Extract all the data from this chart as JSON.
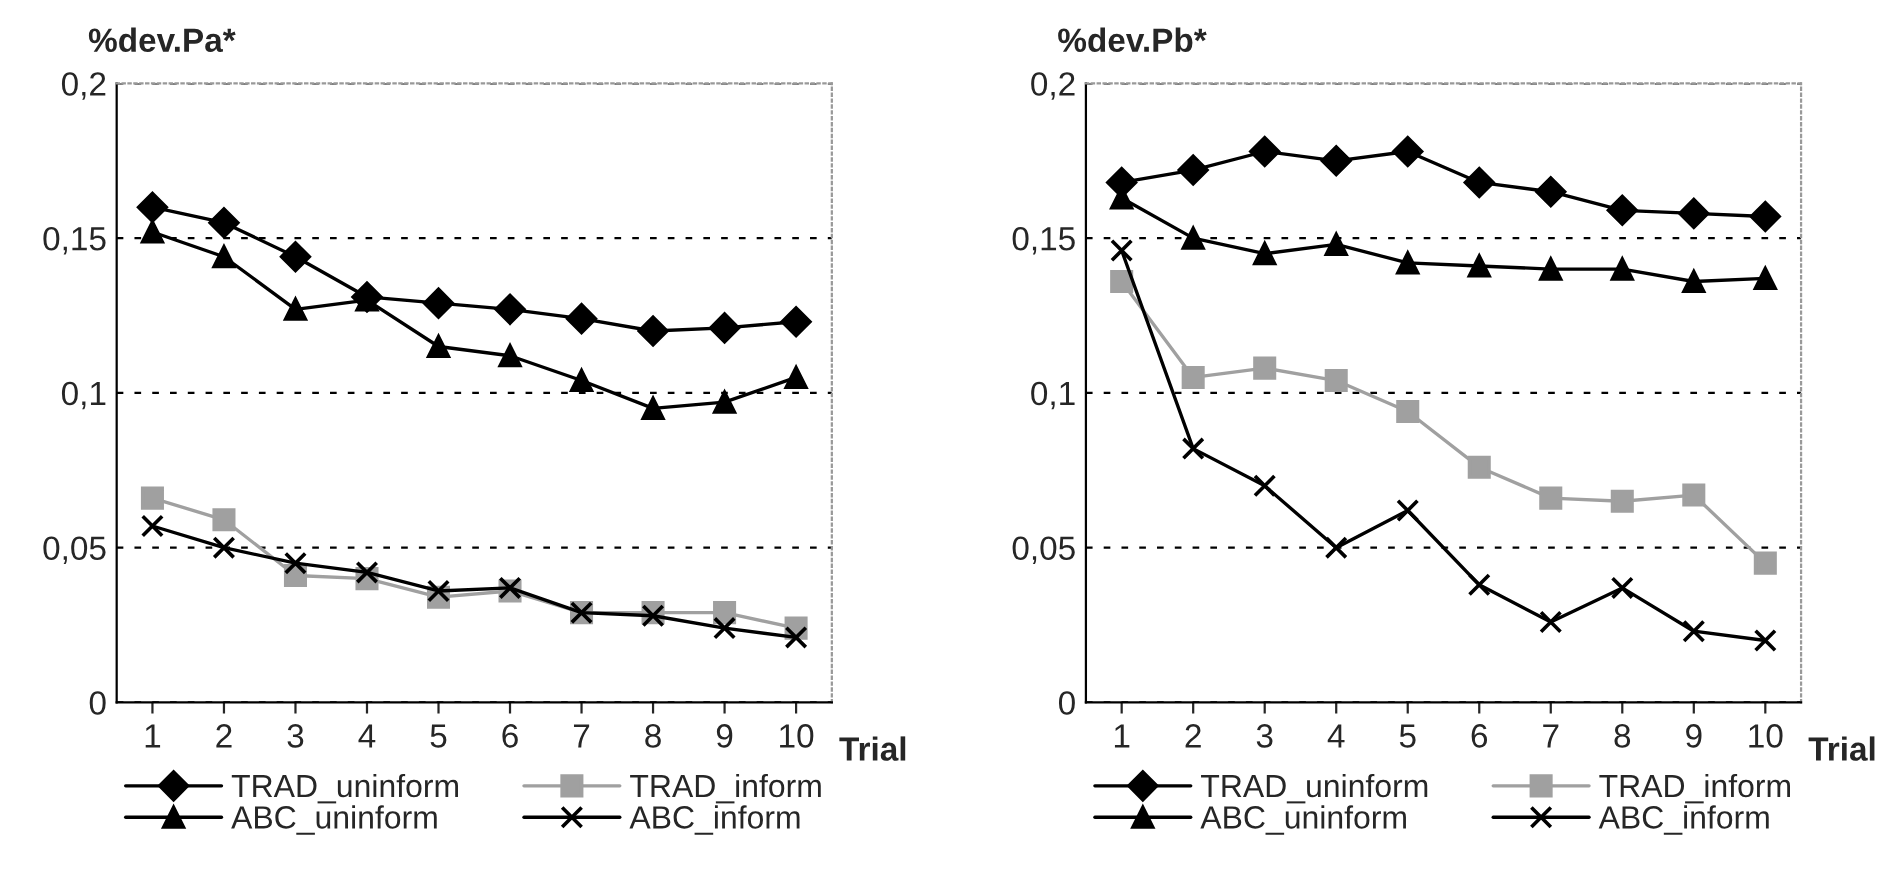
{
  "chart_data": [
    {
      "type": "line",
      "ylabel": "%dev.Pa*",
      "xlabel": "Trial",
      "categories": [
        "1",
        "2",
        "3",
        "4",
        "5",
        "6",
        "7",
        "8",
        "9",
        "10"
      ],
      "ylim": [
        0,
        0.2
      ],
      "yticks": [
        {
          "value": 0,
          "label": "0"
        },
        {
          "value": 0.05,
          "label": "0,05"
        },
        {
          "value": 0.1,
          "label": "0,1"
        },
        {
          "value": 0.15,
          "label": "0,15"
        },
        {
          "value": 0.2,
          "label": "0,2"
        }
      ],
      "grid": "y",
      "legend": "bottom",
      "series": [
        {
          "name": "TRAD_uninform",
          "color": "#000000",
          "marker": "diamond",
          "values": [
            0.16,
            0.155,
            0.144,
            0.131,
            0.129,
            0.127,
            0.124,
            0.12,
            0.121,
            0.123
          ]
        },
        {
          "name": "TRAD_inform",
          "color": "#a0a0a0",
          "marker": "square",
          "values": [
            0.066,
            0.059,
            0.041,
            0.04,
            0.034,
            0.036,
            0.029,
            0.029,
            0.029,
            0.024
          ]
        },
        {
          "name": "ABC_uninform",
          "color": "#000000",
          "marker": "triangle",
          "values": [
            0.152,
            0.144,
            0.127,
            0.13,
            0.115,
            0.112,
            0.104,
            0.095,
            0.097,
            0.105
          ]
        },
        {
          "name": "ABC_inform",
          "color": "#000000",
          "marker": "cross",
          "values": [
            0.057,
            0.05,
            0.045,
            0.042,
            0.036,
            0.037,
            0.029,
            0.028,
            0.024,
            0.021
          ]
        }
      ]
    },
    {
      "type": "line",
      "ylabel": "%dev.Pb*",
      "xlabel": "Trial",
      "categories": [
        "1",
        "2",
        "3",
        "4",
        "5",
        "6",
        "7",
        "8",
        "9",
        "10"
      ],
      "ylim": [
        0,
        0.2
      ],
      "yticks": [
        {
          "value": 0,
          "label": "0"
        },
        {
          "value": 0.05,
          "label": "0,05"
        },
        {
          "value": 0.1,
          "label": "0,1"
        },
        {
          "value": 0.15,
          "label": "0,15"
        },
        {
          "value": 0.2,
          "label": "0,2"
        }
      ],
      "grid": "y",
      "legend": "bottom",
      "series": [
        {
          "name": "TRAD_uninform",
          "color": "#000000",
          "marker": "diamond",
          "values": [
            0.168,
            0.172,
            0.178,
            0.175,
            0.178,
            0.168,
            0.165,
            0.159,
            0.158,
            0.157
          ]
        },
        {
          "name": "TRAD_inform",
          "color": "#a0a0a0",
          "marker": "square",
          "values": [
            0.136,
            0.105,
            0.108,
            0.104,
            0.094,
            0.076,
            0.066,
            0.065,
            0.067,
            0.045
          ]
        },
        {
          "name": "ABC_uninform",
          "color": "#000000",
          "marker": "triangle",
          "values": [
            0.163,
            0.15,
            0.145,
            0.148,
            0.142,
            0.141,
            0.14,
            0.14,
            0.136,
            0.137
          ]
        },
        {
          "name": "ABC_inform",
          "color": "#000000",
          "marker": "cross",
          "values": [
            0.146,
            0.082,
            0.07,
            0.05,
            0.062,
            0.038,
            0.026,
            0.037,
            0.023,
            0.02
          ]
        }
      ]
    }
  ]
}
